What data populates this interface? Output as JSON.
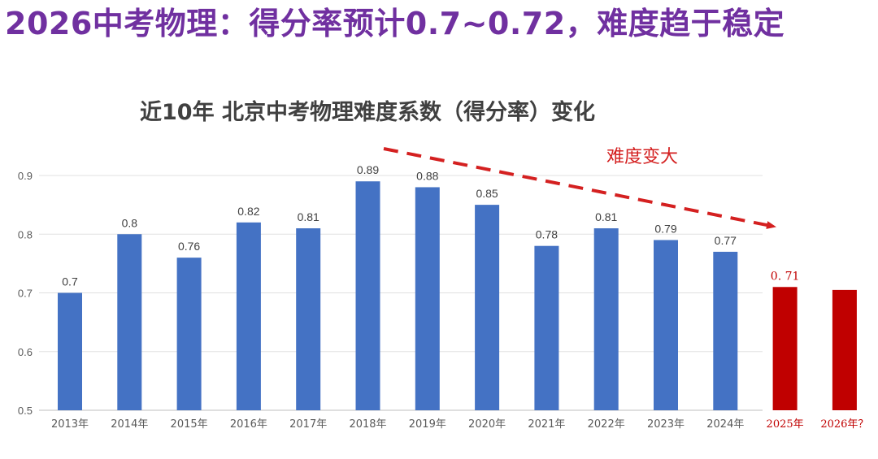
{
  "headline": "2026中考物理：得分率预计0.7~0.72，难度趋于稳定",
  "colors": {
    "headline": "#7030a0",
    "bar": "#4472c4",
    "bar_highlight": "#c00000",
    "annotation": "#d42020",
    "grid": "#e0e0e0"
  },
  "chart_data": {
    "type": "bar",
    "title": "近10年 北京中考物理难度系数（得分率）变化",
    "xlabel": "",
    "ylabel": "",
    "ylim": [
      0.5,
      0.9
    ],
    "yticks": [
      0.5,
      0.6,
      0.7,
      0.8,
      0.9
    ],
    "grid": true,
    "categories": [
      "2013年",
      "2014年",
      "2015年",
      "2016年",
      "2017年",
      "2018年",
      "2019年",
      "2020年",
      "2021年",
      "2022年",
      "2023年",
      "2024年",
      "2025年",
      "2026年？"
    ],
    "values": [
      0.7,
      0.8,
      0.76,
      0.82,
      0.81,
      0.89,
      0.88,
      0.85,
      0.78,
      0.81,
      0.79,
      0.77,
      0.71,
      0.705
    ],
    "data_labels": [
      "0.7",
      "0.8",
      "0.76",
      "0.82",
      "0.81",
      "0.89",
      "0.88",
      "0.85",
      "0.78",
      "0.81",
      "0.79",
      "0.77",
      "0. 71",
      ""
    ],
    "highlighted": [
      false,
      false,
      false,
      false,
      false,
      false,
      false,
      false,
      false,
      false,
      false,
      false,
      true,
      true
    ],
    "annotation": {
      "text": "难度变大",
      "arrow": "dashed red arrow pointing down-right from 2018 toward 2025"
    }
  }
}
